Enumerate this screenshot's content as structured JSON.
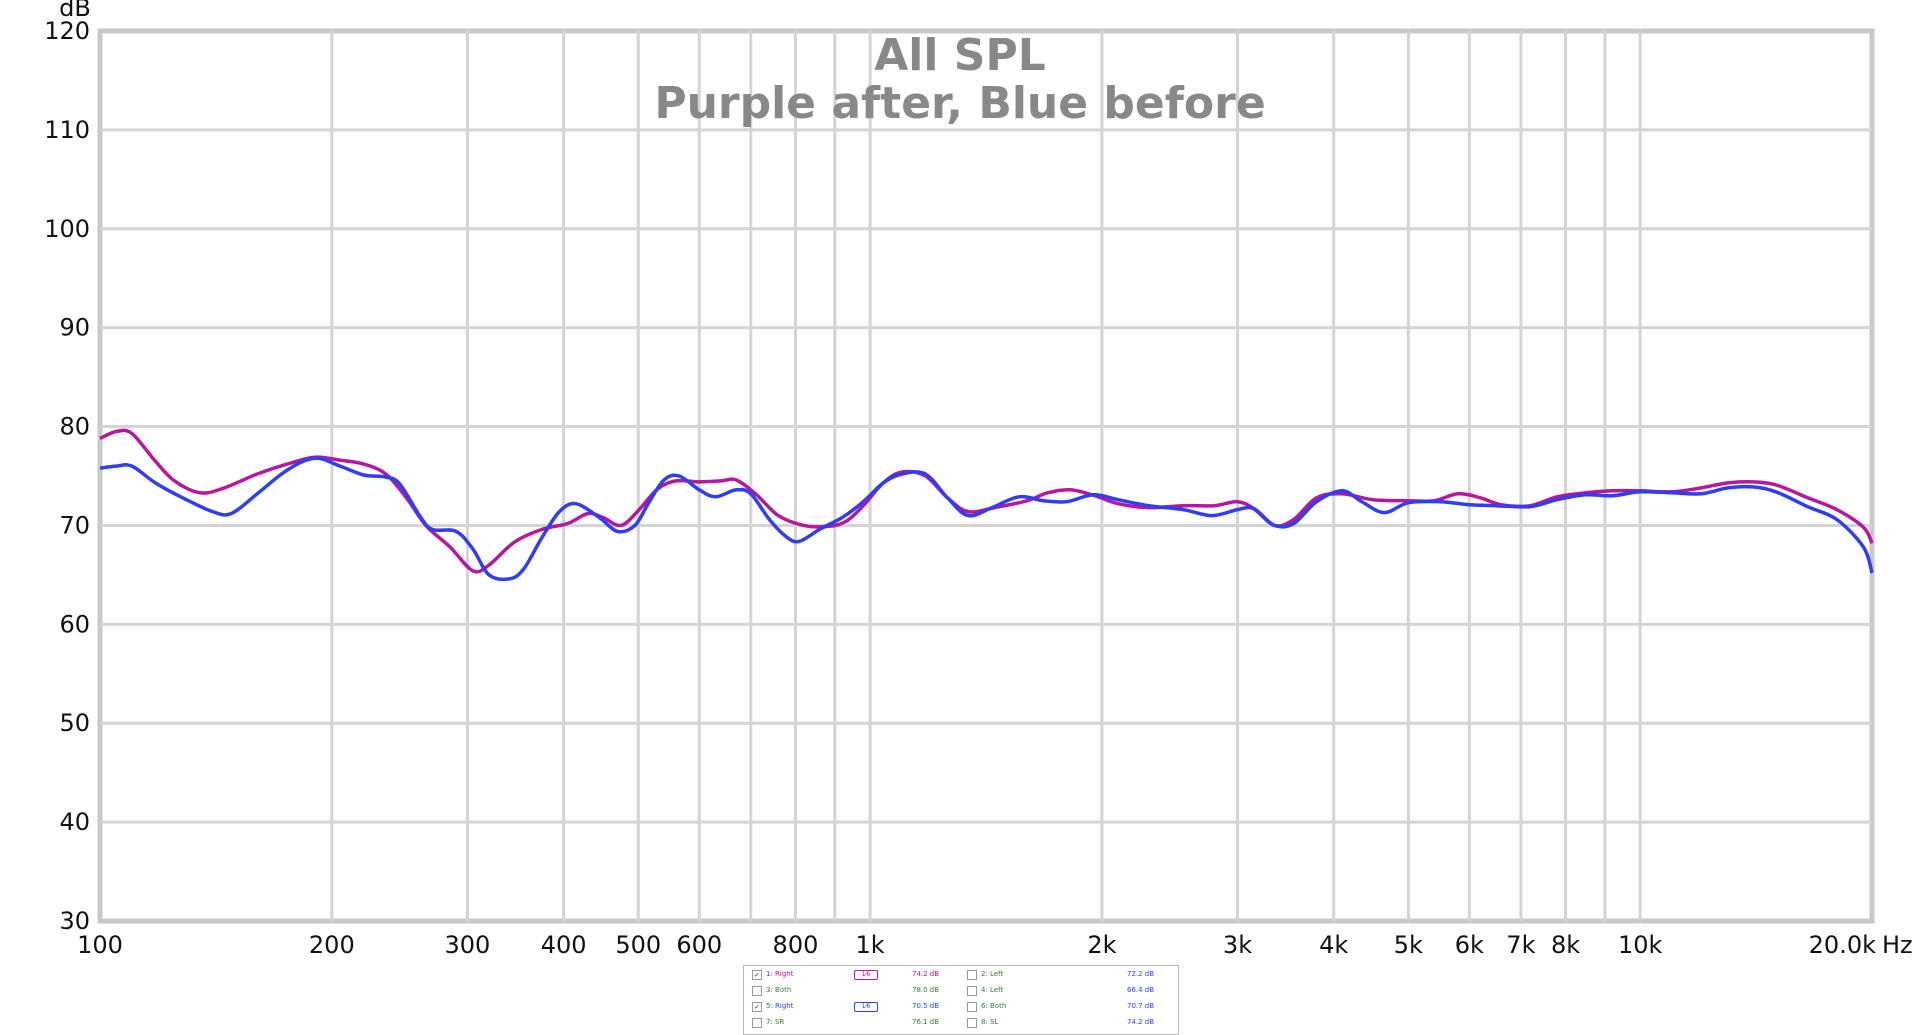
{
  "chart_data": {
    "type": "line",
    "title": "All SPL",
    "subtitle": "Purple after, Blue before",
    "ylabel": "dB",
    "xunit": "Hz",
    "xscale": "log",
    "xlim": [
      100,
      20000
    ],
    "ylim": [
      30,
      120
    ],
    "grid": true,
    "yticks": [
      30,
      40,
      50,
      60,
      70,
      80,
      90,
      100,
      110,
      120
    ],
    "xticks": [
      {
        "v": 100,
        "t": "100"
      },
      {
        "v": 200,
        "t": "200"
      },
      {
        "v": 300,
        "t": "300"
      },
      {
        "v": 400,
        "t": "400"
      },
      {
        "v": 500,
        "t": "500"
      },
      {
        "v": 600,
        "t": "600"
      },
      {
        "v": 800,
        "t": "800"
      },
      {
        "v": 1000,
        "t": "1k"
      },
      {
        "v": 2000,
        "t": "2k"
      },
      {
        "v": 3000,
        "t": "3k"
      },
      {
        "v": 4000,
        "t": "4k"
      },
      {
        "v": 5000,
        "t": "5k"
      },
      {
        "v": 6000,
        "t": "6k"
      },
      {
        "v": 7000,
        "t": "7k"
      },
      {
        "v": 8000,
        "t": "8k"
      },
      {
        "v": 10000,
        "t": "10k"
      },
      {
        "v": 20000,
        "t": "20.0k"
      }
    ],
    "minor_gridlines": [
      700,
      900,
      9000
    ],
    "series": [
      {
        "name": "1: Right",
        "color": "#b5179e",
        "points": [
          [
            100,
            78.8
          ],
          [
            105,
            79.5
          ],
          [
            110,
            79.3
          ],
          [
            118,
            76.5
          ],
          [
            125,
            74.5
          ],
          [
            135,
            73.3
          ],
          [
            145,
            73.8
          ],
          [
            160,
            75.2
          ],
          [
            175,
            76.2
          ],
          [
            190,
            76.9
          ],
          [
            205,
            76.6
          ],
          [
            220,
            76.2
          ],
          [
            235,
            75.2
          ],
          [
            250,
            72.8
          ],
          [
            265,
            70.0
          ],
          [
            285,
            67.8
          ],
          [
            305,
            65.4
          ],
          [
            320,
            66.0
          ],
          [
            345,
            68.3
          ],
          [
            375,
            69.6
          ],
          [
            405,
            70.2
          ],
          [
            430,
            71.2
          ],
          [
            450,
            70.8
          ],
          [
            475,
            70.0
          ],
          [
            500,
            71.5
          ],
          [
            530,
            73.7
          ],
          [
            560,
            74.5
          ],
          [
            600,
            74.4
          ],
          [
            640,
            74.5
          ],
          [
            670,
            74.6
          ],
          [
            710,
            73.2
          ],
          [
            760,
            71.0
          ],
          [
            820,
            70.0
          ],
          [
            880,
            69.9
          ],
          [
            930,
            70.4
          ],
          [
            980,
            72.0
          ],
          [
            1040,
            74.3
          ],
          [
            1100,
            75.4
          ],
          [
            1180,
            75.0
          ],
          [
            1260,
            72.8
          ],
          [
            1340,
            71.4
          ],
          [
            1450,
            71.8
          ],
          [
            1600,
            72.5
          ],
          [
            1700,
            73.3
          ],
          [
            1820,
            73.6
          ],
          [
            1960,
            73.0
          ],
          [
            2100,
            72.2
          ],
          [
            2300,
            71.8
          ],
          [
            2550,
            72.0
          ],
          [
            2800,
            72.0
          ],
          [
            3000,
            72.4
          ],
          [
            3150,
            71.7
          ],
          [
            3350,
            70.0
          ],
          [
            3550,
            70.6
          ],
          [
            3800,
            72.8
          ],
          [
            4100,
            73.2
          ],
          [
            4500,
            72.6
          ],
          [
            5000,
            72.5
          ],
          [
            5400,
            72.5
          ],
          [
            5800,
            73.2
          ],
          [
            6200,
            72.8
          ],
          [
            6600,
            72.1
          ],
          [
            7200,
            72.0
          ],
          [
            7800,
            72.9
          ],
          [
            8500,
            73.3
          ],
          [
            9200,
            73.5
          ],
          [
            10000,
            73.5
          ],
          [
            11000,
            73.4
          ],
          [
            12000,
            73.8
          ],
          [
            13000,
            74.3
          ],
          [
            14000,
            74.4
          ],
          [
            15000,
            74.1
          ],
          [
            16500,
            72.8
          ],
          [
            18000,
            71.6
          ],
          [
            19500,
            69.8
          ],
          [
            20000,
            68.2
          ]
        ]
      },
      {
        "name": "5: Right",
        "color": "#2f3ef0",
        "points": [
          [
            100,
            75.8
          ],
          [
            105,
            76.0
          ],
          [
            110,
            76.0
          ],
          [
            118,
            74.3
          ],
          [
            128,
            72.8
          ],
          [
            140,
            71.4
          ],
          [
            148,
            71.2
          ],
          [
            160,
            73.2
          ],
          [
            175,
            75.6
          ],
          [
            190,
            76.8
          ],
          [
            205,
            76.0
          ],
          [
            220,
            75.1
          ],
          [
            235,
            74.9
          ],
          [
            245,
            74.2
          ],
          [
            260,
            71.0
          ],
          [
            270,
            69.6
          ],
          [
            290,
            69.4
          ],
          [
            305,
            67.6
          ],
          [
            320,
            65.0
          ],
          [
            340,
            64.6
          ],
          [
            355,
            65.6
          ],
          [
            375,
            68.8
          ],
          [
            395,
            71.4
          ],
          [
            415,
            72.2
          ],
          [
            445,
            70.8
          ],
          [
            470,
            69.4
          ],
          [
            495,
            70.0
          ],
          [
            515,
            72.2
          ],
          [
            540,
            74.6
          ],
          [
            565,
            75.0
          ],
          [
            600,
            73.6
          ],
          [
            630,
            72.9
          ],
          [
            670,
            73.6
          ],
          [
            700,
            73.2
          ],
          [
            740,
            70.6
          ],
          [
            780,
            68.8
          ],
          [
            810,
            68.4
          ],
          [
            860,
            69.6
          ],
          [
            920,
            70.8
          ],
          [
            980,
            72.4
          ],
          [
            1040,
            74.3
          ],
          [
            1100,
            75.2
          ],
          [
            1180,
            75.2
          ],
          [
            1260,
            72.8
          ],
          [
            1340,
            71.0
          ],
          [
            1440,
            71.8
          ],
          [
            1560,
            72.9
          ],
          [
            1680,
            72.5
          ],
          [
            1800,
            72.4
          ],
          [
            1950,
            73.1
          ],
          [
            2100,
            72.6
          ],
          [
            2300,
            72.0
          ],
          [
            2550,
            71.6
          ],
          [
            2780,
            71.0
          ],
          [
            3000,
            71.6
          ],
          [
            3150,
            71.7
          ],
          [
            3350,
            70.0
          ],
          [
            3550,
            70.2
          ],
          [
            3800,
            72.4
          ],
          [
            4100,
            73.5
          ],
          [
            4350,
            72.4
          ],
          [
            4650,
            71.3
          ],
          [
            5000,
            72.3
          ],
          [
            5500,
            72.4
          ],
          [
            6000,
            72.1
          ],
          [
            6500,
            72.0
          ],
          [
            7200,
            71.9
          ],
          [
            7800,
            72.6
          ],
          [
            8500,
            73.1
          ],
          [
            9200,
            73.0
          ],
          [
            10000,
            73.4
          ],
          [
            11000,
            73.3
          ],
          [
            12000,
            73.2
          ],
          [
            13000,
            73.8
          ],
          [
            14000,
            73.9
          ],
          [
            15000,
            73.4
          ],
          [
            16500,
            71.9
          ],
          [
            18000,
            70.6
          ],
          [
            19500,
            67.8
          ],
          [
            20000,
            65.2
          ]
        ]
      }
    ]
  },
  "legend": {
    "rows": [
      {
        "left": {
          "checked": true,
          "label": "1: Right",
          "label_color": "#b5179e",
          "swatch": "1⁄6",
          "swatch_color": "#b5179e",
          "value": "74.2 dB",
          "value_color": "#b5179e"
        },
        "right": {
          "checked": false,
          "label": "2: Left",
          "label_color": "#3a7a3a",
          "value": "72.2 dB",
          "value_color": "#2f3ef0"
        }
      },
      {
        "left": {
          "checked": false,
          "label": "3: Both",
          "label_color": "#3a7a3a",
          "value": "78.0 dB",
          "value_color": "#3a7a3a"
        },
        "right": {
          "checked": false,
          "label": "4: Left",
          "label_color": "#3a7a3a",
          "value": "66.4 dB",
          "value_color": "#2f3ef0"
        }
      },
      {
        "left": {
          "checked": true,
          "label": "5: Right",
          "label_color": "#2f3ef0",
          "swatch": "1⁄6",
          "swatch_color": "#2f3ef0",
          "value": "70.5 dB",
          "value_color": "#2f3ef0"
        },
        "right": {
          "checked": false,
          "label": "6: Both",
          "label_color": "#3a7a3a",
          "value": "70.7 dB",
          "value_color": "#2f3ef0"
        }
      },
      {
        "left": {
          "checked": false,
          "label": "7: SR",
          "label_color": "#3a7a3a",
          "value": "76.1 dB",
          "value_color": "#3a7a3a"
        },
        "right": {
          "checked": false,
          "label": "8: SL",
          "label_color": "#3a7a3a",
          "value": "74.2 dB",
          "value_color": "#2f3ef0"
        }
      }
    ]
  }
}
